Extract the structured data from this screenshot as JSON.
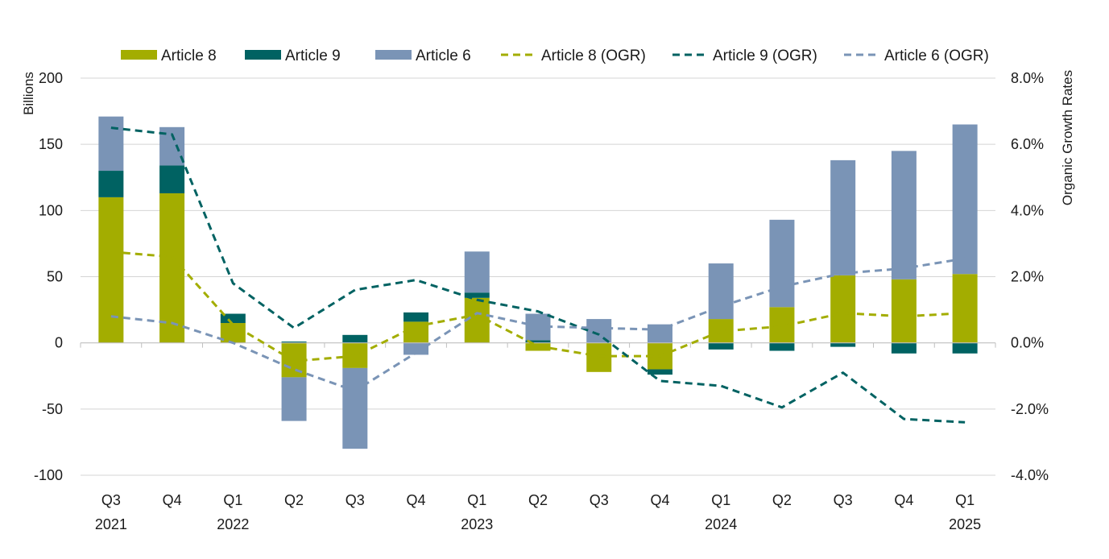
{
  "chart_data": {
    "type": "bar",
    "subtype": "stacked bar with lines on secondary axis",
    "categories": [
      "Q3 2021",
      "Q4 2021",
      "Q1 2022",
      "Q2 2022",
      "Q3 2022",
      "Q4 2022",
      "Q1 2023",
      "Q2 2023",
      "Q3 2023",
      "Q4 2023",
      "Q1 2024",
      "Q2 2024",
      "Q3 2024",
      "Q4 2024",
      "Q1 2025"
    ],
    "x_tick_labels": [
      {
        "quarter": "Q3",
        "year": "2021"
      },
      {
        "quarter": "Q4",
        "year": ""
      },
      {
        "quarter": "Q1",
        "year": "2022"
      },
      {
        "quarter": "Q2",
        "year": ""
      },
      {
        "quarter": "Q3",
        "year": ""
      },
      {
        "quarter": "Q4",
        "year": ""
      },
      {
        "quarter": "Q1",
        "year": "2023"
      },
      {
        "quarter": "Q2",
        "year": ""
      },
      {
        "quarter": "Q3",
        "year": ""
      },
      {
        "quarter": "Q4",
        "year": ""
      },
      {
        "quarter": "Q1",
        "year": "2024"
      },
      {
        "quarter": "Q2",
        "year": ""
      },
      {
        "quarter": "Q3",
        "year": ""
      },
      {
        "quarter": "Q4",
        "year": ""
      },
      {
        "quarter": "Q1",
        "year": "2025"
      }
    ],
    "ylabel": "Billions",
    "y2label": "Organic Growth Rates",
    "ylim": [
      -100,
      200
    ],
    "yticks": [
      200,
      150,
      100,
      50,
      0,
      -50,
      -100
    ],
    "y2lim": [
      -4,
      8
    ],
    "y2ticks": [
      "8.0%",
      "6.0%",
      "4.0%",
      "2.0%",
      "0.0%",
      "-2.0%",
      "-4.0%"
    ],
    "y2ticks_values": [
      8,
      6,
      4,
      2,
      0,
      -2,
      -4
    ],
    "grid": "horizontal",
    "legend_position": "top",
    "bar_series": [
      {
        "name": "Article 8",
        "color": "#a3ad00",
        "values": [
          110,
          113,
          15,
          -26,
          -19,
          16,
          34,
          -6,
          -22,
          -20,
          18,
          27,
          51,
          48,
          52
        ]
      },
      {
        "name": "Article 9",
        "color": "#006262",
        "values": [
          20,
          21,
          7,
          1,
          6,
          7,
          4,
          2,
          0,
          -4,
          -5,
          -6,
          -3,
          -8,
          -8
        ]
      },
      {
        "name": "Article 6",
        "color": "#7a94b6",
        "values": [
          41,
          29,
          0,
          -33,
          -61,
          -9,
          31,
          20,
          18,
          14,
          42,
          66,
          87,
          97,
          113
        ]
      }
    ],
    "line_series": [
      {
        "name": "Article 8 (OGR)",
        "color": "#a3ad00",
        "values": [
          2.75,
          2.6,
          0.55,
          -0.55,
          -0.4,
          0.5,
          0.85,
          -0.1,
          -0.4,
          -0.4,
          0.35,
          0.5,
          0.9,
          0.8,
          0.9
        ]
      },
      {
        "name": "Article 9 (OGR)",
        "color": "#006262",
        "values": [
          6.5,
          6.3,
          1.8,
          0.45,
          1.6,
          1.9,
          1.3,
          0.95,
          0.25,
          -1.15,
          -1.3,
          -1.95,
          -0.9,
          -2.3,
          -2.4
        ]
      },
      {
        "name": "Article 6 (OGR)",
        "color": "#7a94b6",
        "values": [
          0.8,
          0.6,
          0.0,
          -0.8,
          -1.45,
          -0.3,
          0.9,
          0.5,
          0.45,
          0.4,
          1.1,
          1.7,
          2.1,
          2.25,
          2.55
        ]
      }
    ]
  }
}
